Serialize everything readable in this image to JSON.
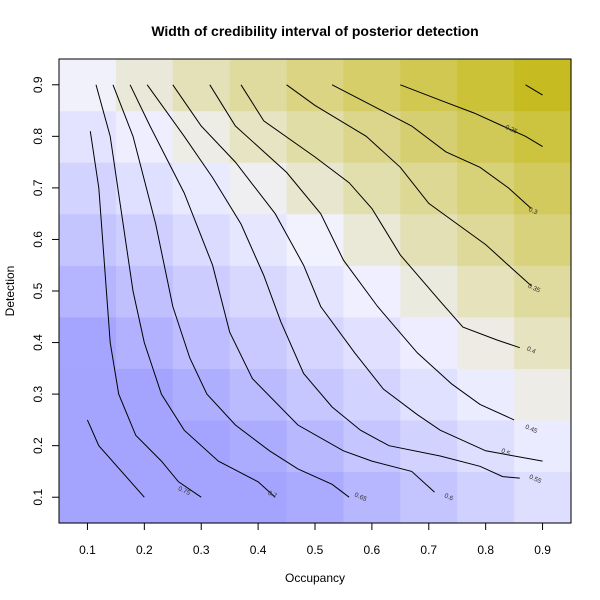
{
  "chart_data": {
    "type": "heatmap",
    "title": "Width of credibility interval of posterior detection",
    "xlabel": "Occupancy",
    "ylabel": "Detection",
    "x": [
      0.1,
      0.2,
      0.3,
      0.4,
      0.5,
      0.6,
      0.7,
      0.8,
      0.9
    ],
    "y": [
      0.1,
      0.2,
      0.3,
      0.4,
      0.5,
      0.6,
      0.7,
      0.8,
      0.9
    ],
    "xlim": [
      0.05,
      0.95
    ],
    "ylim": [
      0.05,
      0.95
    ],
    "x_ticks": [
      "0.1",
      "0.2",
      "0.3",
      "0.4",
      "0.5",
      "0.6",
      "0.7",
      "0.8",
      "0.9"
    ],
    "y_ticks": [
      "0.1",
      "0.2",
      "0.3",
      "0.4",
      "0.5",
      "0.6",
      "0.7",
      "0.8",
      "0.9"
    ],
    "colors": {
      "low": "#a4a4ff",
      "mid": "#f2f2ff",
      "high": "#c0b400"
    },
    "contour_labels": [
      "0.75",
      "0.7",
      "0.65",
      "0.6",
      "0.55",
      "0.5",
      "0.45",
      "0.4",
      "0.35",
      "0.3",
      "0.25"
    ],
    "contours": [
      {
        "level": "0.8",
        "label_at": null,
        "points": [
          [
            0.1,
            0.25
          ],
          [
            0.12,
            0.2
          ],
          [
            0.2,
            0.1
          ]
        ]
      },
      {
        "level": "0.75",
        "label_at": [
          0.27,
          0.112
        ],
        "points": [
          [
            0.105,
            0.81
          ],
          [
            0.12,
            0.7
          ],
          [
            0.13,
            0.55
          ],
          [
            0.14,
            0.4
          ],
          [
            0.155,
            0.3
          ],
          [
            0.185,
            0.22
          ],
          [
            0.23,
            0.17
          ],
          [
            0.26,
            0.13
          ],
          [
            0.3,
            0.1
          ]
        ]
      },
      {
        "level": "0.7",
        "label_at": [
          0.425,
          0.105
        ],
        "points": [
          [
            0.115,
            0.9
          ],
          [
            0.14,
            0.8
          ],
          [
            0.16,
            0.65
          ],
          [
            0.18,
            0.5
          ],
          [
            0.2,
            0.4
          ],
          [
            0.23,
            0.3
          ],
          [
            0.27,
            0.23
          ],
          [
            0.33,
            0.17
          ],
          [
            0.4,
            0.13
          ],
          [
            0.43,
            0.1
          ]
        ]
      },
      {
        "level": "0.65",
        "label_at": [
          0.58,
          0.1
        ],
        "points": [
          [
            0.145,
            0.9
          ],
          [
            0.18,
            0.8
          ],
          [
            0.22,
            0.63
          ],
          [
            0.25,
            0.47
          ],
          [
            0.28,
            0.37
          ],
          [
            0.31,
            0.3
          ],
          [
            0.36,
            0.24
          ],
          [
            0.42,
            0.19
          ],
          [
            0.47,
            0.155
          ],
          [
            0.53,
            0.125
          ],
          [
            0.56,
            0.1
          ]
        ]
      },
      {
        "level": "0.6",
        "label_at": [
          0.735,
          0.1
        ],
        "points": [
          [
            0.175,
            0.9
          ],
          [
            0.21,
            0.82
          ],
          [
            0.27,
            0.69
          ],
          [
            0.32,
            0.55
          ],
          [
            0.35,
            0.42
          ],
          [
            0.39,
            0.33
          ],
          [
            0.47,
            0.24
          ],
          [
            0.55,
            0.19
          ],
          [
            0.6,
            0.17
          ],
          [
            0.67,
            0.15
          ],
          [
            0.71,
            0.11
          ]
        ]
      },
      {
        "level": "0.55",
        "label_at": [
          0.887,
          0.135
        ],
        "points": [
          [
            0.205,
            0.9
          ],
          [
            0.27,
            0.8
          ],
          [
            0.32,
            0.72
          ],
          [
            0.37,
            0.63
          ],
          [
            0.41,
            0.53
          ],
          [
            0.44,
            0.44
          ],
          [
            0.48,
            0.34
          ],
          [
            0.53,
            0.275
          ],
          [
            0.58,
            0.23
          ],
          [
            0.63,
            0.2
          ],
          [
            0.72,
            0.18
          ],
          [
            0.79,
            0.16
          ],
          [
            0.83,
            0.14
          ],
          [
            0.86,
            0.137
          ]
        ]
      },
      {
        "level": "0.5",
        "label_at": [
          0.835,
          0.187
        ],
        "points": [
          [
            0.25,
            0.9
          ],
          [
            0.3,
            0.82
          ],
          [
            0.36,
            0.75
          ],
          [
            0.43,
            0.65
          ],
          [
            0.48,
            0.55
          ],
          [
            0.51,
            0.47
          ],
          [
            0.57,
            0.38
          ],
          [
            0.62,
            0.31
          ],
          [
            0.68,
            0.26
          ],
          [
            0.72,
            0.23
          ],
          [
            0.8,
            0.19
          ],
          [
            0.9,
            0.17
          ]
        ]
      },
      {
        "level": "0.45",
        "label_at": [
          0.88,
          0.232
        ],
        "points": [
          [
            0.315,
            0.9
          ],
          [
            0.36,
            0.82
          ],
          [
            0.45,
            0.73
          ],
          [
            0.51,
            0.65
          ],
          [
            0.55,
            0.56
          ],
          [
            0.61,
            0.47
          ],
          [
            0.68,
            0.38
          ],
          [
            0.74,
            0.32
          ],
          [
            0.79,
            0.28
          ],
          [
            0.85,
            0.25
          ]
        ]
      },
      {
        "level": "0.4",
        "label_at": [
          0.88,
          0.385
        ],
        "points": [
          [
            0.37,
            0.9
          ],
          [
            0.41,
            0.83
          ],
          [
            0.5,
            0.76
          ],
          [
            0.56,
            0.71
          ],
          [
            0.6,
            0.66
          ],
          [
            0.65,
            0.57
          ],
          [
            0.72,
            0.48
          ],
          [
            0.76,
            0.43
          ],
          [
            0.82,
            0.405
          ],
          [
            0.86,
            0.39
          ]
        ]
      },
      {
        "level": "0.35",
        "label_at": [
          0.885,
          0.505
        ],
        "points": [
          [
            0.45,
            0.9
          ],
          [
            0.5,
            0.86
          ],
          [
            0.59,
            0.8
          ],
          [
            0.65,
            0.74
          ],
          [
            0.7,
            0.67
          ],
          [
            0.75,
            0.63
          ],
          [
            0.8,
            0.59
          ],
          [
            0.85,
            0.54
          ],
          [
            0.88,
            0.51
          ]
        ]
      },
      {
        "level": "0.3",
        "label_at": [
          0.883,
          0.655
        ],
        "points": [
          [
            0.53,
            0.9
          ],
          [
            0.6,
            0.86
          ],
          [
            0.67,
            0.82
          ],
          [
            0.73,
            0.77
          ],
          [
            0.79,
            0.74
          ],
          [
            0.84,
            0.7
          ],
          [
            0.88,
            0.66
          ]
        ]
      },
      {
        "level": "0.25",
        "label_at": [
          0.845,
          0.813
        ],
        "points": [
          [
            0.65,
            0.9
          ],
          [
            0.72,
            0.87
          ],
          [
            0.78,
            0.845
          ],
          [
            0.83,
            0.82
          ],
          [
            0.87,
            0.8
          ],
          [
            0.9,
            0.78
          ]
        ]
      },
      {
        "level": "0.2",
        "label_at": null,
        "points": [
          [
            0.87,
            0.9
          ],
          [
            0.9,
            0.88
          ]
        ]
      }
    ]
  }
}
